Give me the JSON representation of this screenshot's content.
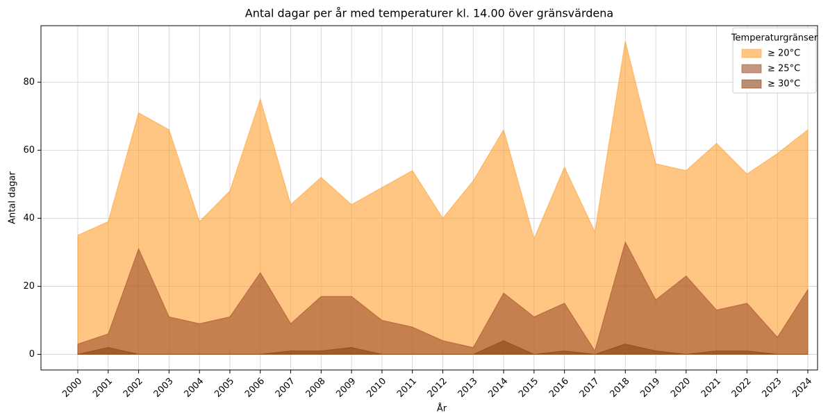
{
  "chart_data": {
    "type": "area",
    "title": "Antal dagar per år med temperaturer kl. 14.00 över gränsvärdena",
    "xlabel": "År",
    "ylabel": "Antal dagar",
    "x": [
      2000,
      2001,
      2002,
      2003,
      2004,
      2005,
      2006,
      2007,
      2008,
      2009,
      2010,
      2011,
      2012,
      2013,
      2014,
      2015,
      2016,
      2017,
      2018,
      2019,
      2020,
      2021,
      2022,
      2023,
      2024
    ],
    "series": [
      {
        "name": "≥ 20°C",
        "color": "#ff9f30",
        "values": [
          35,
          39,
          71,
          66,
          39,
          48,
          75,
          44,
          52,
          44,
          49,
          54,
          40,
          51,
          66,
          34,
          55,
          36,
          92,
          56,
          54,
          62,
          53,
          59,
          66
        ]
      },
      {
        "name": "≥ 25°C",
        "color": "#a0522d",
        "values": [
          3,
          6,
          31,
          11,
          9,
          11,
          24,
          9,
          17,
          17,
          10,
          8,
          4,
          2,
          18,
          11,
          15,
          1,
          33,
          16,
          23,
          13,
          15,
          5,
          19
        ]
      },
      {
        "name": "≥ 30°C",
        "color": "#8b4513",
        "values": [
          0,
          2,
          0,
          0,
          0,
          0,
          0,
          1,
          1,
          2,
          0,
          0,
          0,
          0,
          4,
          0,
          1,
          0,
          3,
          1,
          0,
          1,
          1,
          0,
          0
        ]
      }
    ],
    "opacity": 0.6,
    "xlim": [
      1998.79,
      2024.32
    ],
    "xticks": [
      2000,
      2001,
      2002,
      2003,
      2004,
      2005,
      2006,
      2007,
      2008,
      2009,
      2010,
      2011,
      2012,
      2013,
      2014,
      2015,
      2016,
      2017,
      2018,
      2019,
      2020,
      2021,
      2022,
      2023,
      2024
    ],
    "ylim": [
      -4.6,
      96.6
    ],
    "yticks": [
      0,
      20,
      40,
      60,
      80
    ],
    "grid": true,
    "legend": {
      "title": "Temperaturgränser",
      "position": "upper right"
    }
  }
}
